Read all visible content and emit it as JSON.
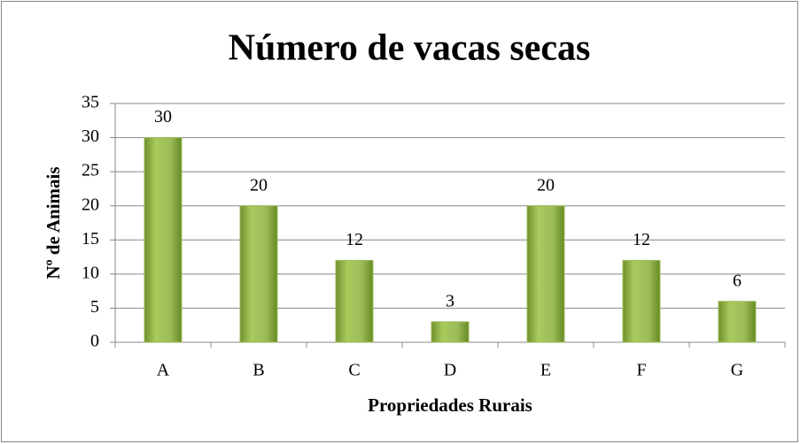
{
  "chart_data": {
    "type": "bar",
    "title": "Número de vacas secas",
    "x_label": "Propriedades Rurais",
    "y_label": "Nº de Animais",
    "categories": [
      "A",
      "B",
      "C",
      "D",
      "E",
      "F",
      "G"
    ],
    "values": [
      30,
      20,
      12,
      3,
      20,
      12,
      6
    ],
    "color": "#9bbb59",
    "ylim": [
      0,
      35
    ],
    "yticks": [
      0,
      5,
      10,
      15,
      20,
      25,
      30,
      35
    ],
    "grid": true
  }
}
